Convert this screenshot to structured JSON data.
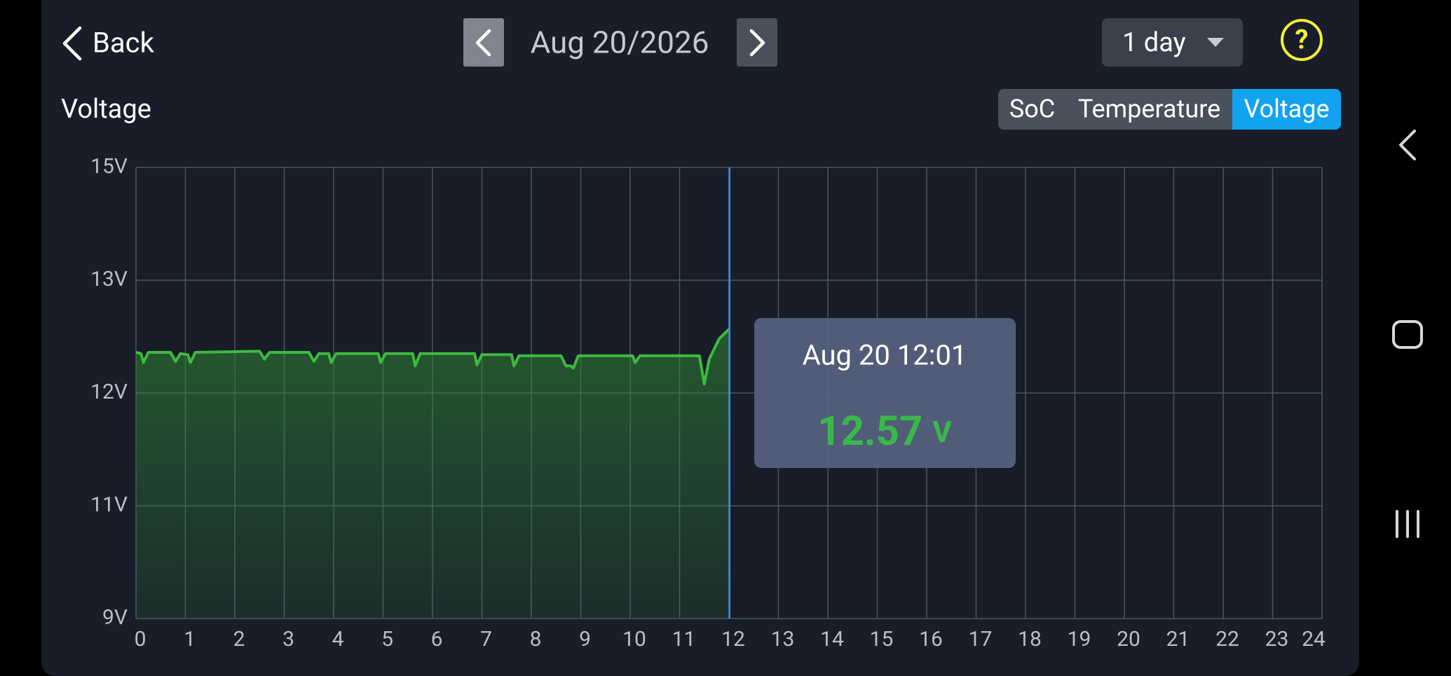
{
  "header": {
    "back": "Back",
    "date": "Aug 20/2026",
    "range": "1 day",
    "help": "?"
  },
  "tabs": {
    "items": [
      "SoC",
      "Temperature",
      "Voltage"
    ],
    "active": 2
  },
  "tooltip": {
    "label": "Aug 20 12:01",
    "value": 12.57,
    "unit": "V"
  },
  "chart_data": {
    "type": "area",
    "title": "Voltage",
    "x": [
      0,
      0.1,
      0.15,
      0.25,
      0.7,
      0.8,
      0.9,
      1.05,
      1.1,
      1.2,
      2.5,
      2.6,
      2.7,
      3.5,
      3.6,
      3.7,
      3.9,
      3.95,
      4.05,
      4.9,
      4.95,
      5.05,
      5.6,
      5.65,
      5.75,
      6.85,
      6.9,
      7.0,
      7.6,
      7.65,
      7.75,
      8.6,
      8.7,
      8.8,
      8.85,
      8.95,
      10.05,
      10.1,
      10.2,
      11.4,
      11.5,
      11.6,
      11.8,
      12.01
    ],
    "series": [
      {
        "name": "Voltage",
        "color": "#3dba3f",
        "values": [
          12.36,
          12.35,
          12.27,
          12.36,
          12.36,
          12.28,
          12.35,
          12.34,
          12.27,
          12.36,
          12.37,
          12.3,
          12.36,
          12.36,
          12.28,
          12.35,
          12.35,
          12.27,
          12.35,
          12.35,
          12.27,
          12.35,
          12.35,
          12.24,
          12.35,
          12.35,
          12.25,
          12.34,
          12.34,
          12.24,
          12.33,
          12.33,
          12.24,
          12.24,
          12.22,
          12.33,
          12.33,
          12.27,
          12.33,
          12.33,
          12.08,
          12.3,
          12.48,
          12.57
        ]
      }
    ],
    "xlim": [
      0,
      24
    ],
    "xticks": [
      0,
      1,
      2,
      3,
      4,
      5,
      6,
      7,
      8,
      9,
      10,
      11,
      12,
      13,
      14,
      15,
      16,
      17,
      18,
      19,
      20,
      21,
      22,
      23,
      24
    ],
    "ylim": [
      9,
      15
    ],
    "yticks": [
      {
        "value": 9,
        "label": "9V"
      },
      {
        "value": 11,
        "label": "11V"
      },
      {
        "value": 12,
        "label": "12V"
      },
      {
        "value": 13,
        "label": "13V"
      },
      {
        "value": 15,
        "label": "15V"
      }
    ],
    "grid": true
  }
}
